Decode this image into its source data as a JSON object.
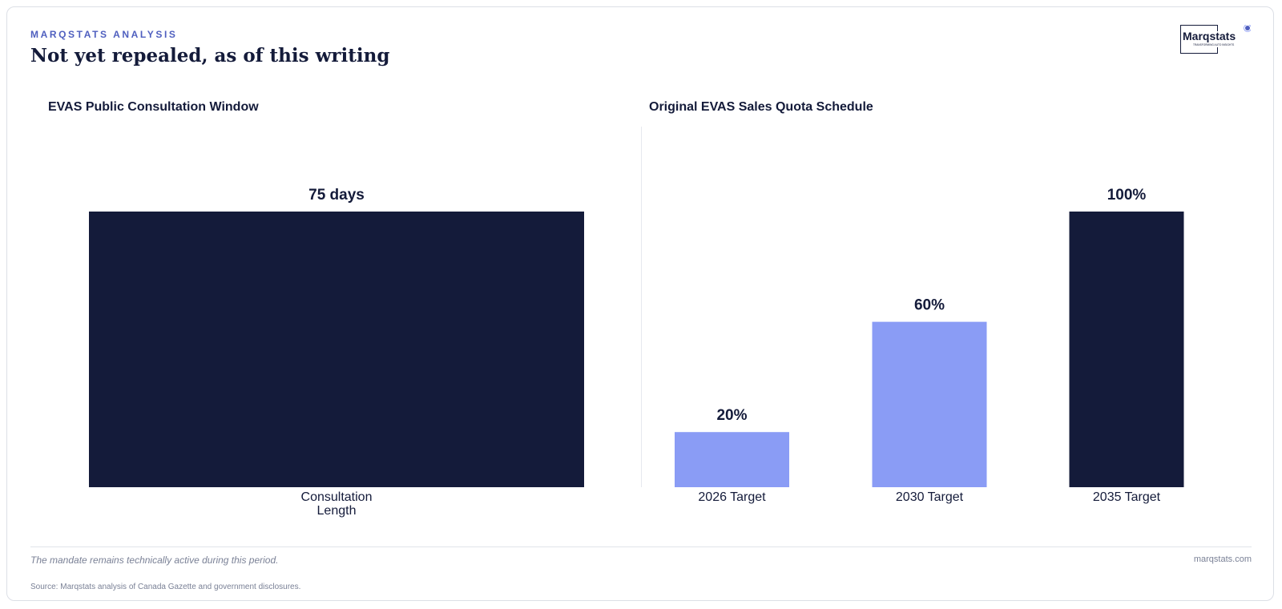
{
  "header": {
    "kicker": "MARQSTATS ANALYSIS",
    "title": "Not yet repealed, as of this writing"
  },
  "logo": {
    "name": "Marqstats",
    "tagline": "TRANSFORMING AUTO INSIGHTS"
  },
  "colors": {
    "navy": "#141b3a",
    "periwinkle": "#8a9cf5",
    "accent": "#4f5fbf"
  },
  "chart_data": [
    {
      "type": "bar",
      "title": "EVAS Public Consultation Window",
      "categories": [
        "Consultation\nLength"
      ],
      "values": [
        75
      ],
      "value_labels": [
        "75 days"
      ],
      "unit": "days",
      "ylim": [
        0,
        75
      ],
      "bar_colors": [
        "#141b3a"
      ],
      "grid": false
    },
    {
      "type": "bar",
      "title": "Original EVAS Sales Quota Schedule",
      "categories": [
        "2026 Target",
        "2030 Target",
        "2035 Target"
      ],
      "values": [
        20,
        60,
        100
      ],
      "value_labels": [
        "20%",
        "60%",
        "100%"
      ],
      "unit": "%",
      "ylim": [
        0,
        100
      ],
      "bar_colors": [
        "#8a9cf5",
        "#8a9cf5",
        "#141b3a"
      ],
      "grid": false
    }
  ],
  "footer": {
    "note": "The mandate remains technically active during this period.",
    "site": "marqstats.com",
    "source": "Source: Marqstats analysis of Canada Gazette and government disclosures."
  }
}
